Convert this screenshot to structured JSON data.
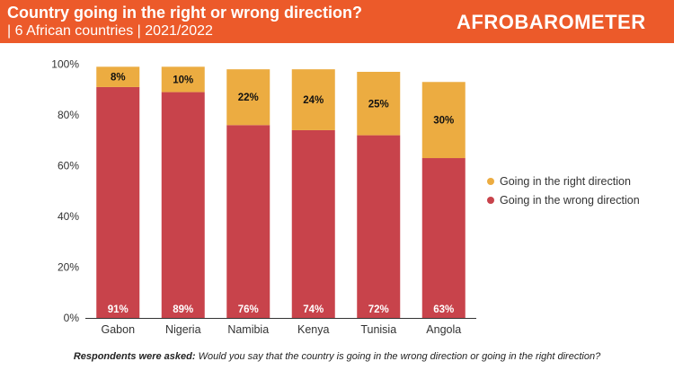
{
  "header": {
    "title": "Country going in the right or wrong direction?",
    "subtitle": "| 6 African countries | 2021/2022",
    "brand": "AFROBAROMETER"
  },
  "footnote": {
    "label": "Respondents were asked:",
    "question": "Would you say that the country is going in the wrong direction or going in the right direction?"
  },
  "colors": {
    "right": "#ecac41",
    "wrong": "#c8434b",
    "header": "#ec5a2a"
  },
  "chart_data": {
    "type": "bar",
    "stacked": true,
    "categories": [
      "Gabon",
      "Nigeria",
      "Namibia",
      "Kenya",
      "Tunisia",
      "Angola"
    ],
    "series": [
      {
        "name": "Going in the wrong direction",
        "values": [
          91,
          89,
          76,
          74,
          72,
          63
        ],
        "labels": [
          "91%",
          "89%",
          "76%",
          "74%",
          "72%",
          "63%"
        ]
      },
      {
        "name": "Going in the right direction",
        "values": [
          8,
          10,
          22,
          24,
          25,
          30
        ],
        "labels": [
          "8%",
          "10%",
          "22%",
          "24%",
          "25%",
          "30%"
        ]
      }
    ],
    "yticks": [
      "0%",
      "20%",
      "40%",
      "60%",
      "80%",
      "100%"
    ],
    "ylim": [
      0,
      100
    ],
    "grid": false,
    "legend": {
      "position": "right",
      "entries": [
        "Going in the right direction",
        "Going in the wrong direction"
      ]
    }
  }
}
